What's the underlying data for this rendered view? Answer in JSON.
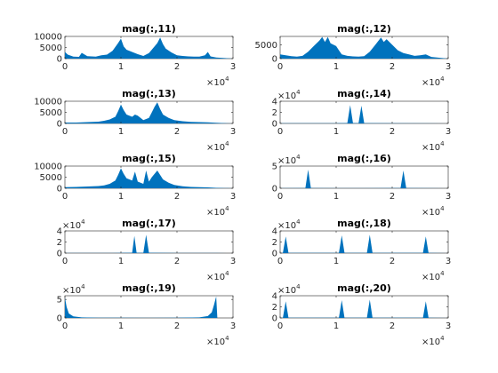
{
  "figure": {
    "background": "#ffffff",
    "series_color": "#0072bd"
  },
  "chart_data": [
    {
      "type": "area",
      "title": "mag(:,11)",
      "xlim": [
        0,
        30000
      ],
      "x_ticks": [
        "0",
        "1",
        "2",
        "3"
      ],
      "x_exponent": "×10",
      "x_exponent_power": "4",
      "ylim": [
        0,
        10000
      ],
      "y_ticks": [
        "0",
        "5000",
        "10000"
      ],
      "y_exponent": "",
      "y_exponent_power": "",
      "series": [
        {
          "points": [
            [
              0,
              3000
            ],
            [
              500,
              1800
            ],
            [
              1500,
              900
            ],
            [
              2500,
              800
            ],
            [
              3000,
              2600
            ],
            [
              4000,
              1100
            ],
            [
              5500,
              900
            ],
            [
              6500,
              1500
            ],
            [
              7500,
              1800
            ],
            [
              8500,
              3500
            ],
            [
              9500,
              7000
            ],
            [
              10000,
              9000
            ],
            [
              10500,
              5500
            ],
            [
              11000,
              4000
            ],
            [
              12000,
              3000
            ],
            [
              13000,
              2000
            ],
            [
              14000,
              1200
            ],
            [
              15000,
              2500
            ],
            [
              16000,
              5500
            ],
            [
              16500,
              7000
            ],
            [
              17000,
              9500
            ],
            [
              17500,
              6500
            ],
            [
              18000,
              4500
            ],
            [
              19000,
              2800
            ],
            [
              20000,
              1500
            ],
            [
              21000,
              1200
            ],
            [
              22000,
              1000
            ],
            [
              23000,
              900
            ],
            [
              24000,
              900
            ],
            [
              25000,
              1500
            ],
            [
              25500,
              3000
            ],
            [
              26000,
              1000
            ],
            [
              27000,
              500
            ],
            [
              30000,
              0
            ]
          ]
        }
      ]
    },
    {
      "type": "area",
      "title": "mag(:,12)",
      "xlim": [
        0,
        30000
      ],
      "x_ticks": [
        "0",
        "1",
        "2",
        "3"
      ],
      "x_exponent": "×10",
      "x_exponent_power": "4",
      "ylim": [
        0,
        8000
      ],
      "y_ticks": [
        "0",
        "5000"
      ],
      "y_exponent": "",
      "y_exponent_power": "",
      "series": [
        {
          "points": [
            [
              0,
              1500
            ],
            [
              1000,
              1200
            ],
            [
              2000,
              900
            ],
            [
              3000,
              700
            ],
            [
              4000,
              1000
            ],
            [
              5000,
              2500
            ],
            [
              6000,
              4500
            ],
            [
              7000,
              6500
            ],
            [
              7500,
              7800
            ],
            [
              8000,
              6000
            ],
            [
              8500,
              7800
            ],
            [
              9000,
              5500
            ],
            [
              10000,
              4500
            ],
            [
              10500,
              3000
            ],
            [
              11000,
              1500
            ],
            [
              12000,
              1000
            ],
            [
              13000,
              800
            ],
            [
              14000,
              700
            ],
            [
              15000,
              900
            ],
            [
              16000,
              2500
            ],
            [
              17000,
              5000
            ],
            [
              18000,
              7600
            ],
            [
              18500,
              6000
            ],
            [
              19000,
              7000
            ],
            [
              20000,
              5000
            ],
            [
              21000,
              3000
            ],
            [
              22000,
              2000
            ],
            [
              23000,
              1500
            ],
            [
              24000,
              1000
            ],
            [
              25000,
              1200
            ],
            [
              26000,
              1500
            ],
            [
              27000,
              600
            ],
            [
              30000,
              0
            ]
          ]
        }
      ]
    },
    {
      "type": "area",
      "title": "mag(:,13)",
      "xlim": [
        0,
        30000
      ],
      "x_ticks": [
        "0",
        "1",
        "2",
        "3"
      ],
      "x_exponent": "×10",
      "x_exponent_power": "4",
      "ylim": [
        0,
        10000
      ],
      "y_ticks": [
        "0",
        "5000",
        "10000"
      ],
      "y_exponent": "",
      "y_exponent_power": "",
      "series": [
        {
          "points": [
            [
              0,
              400
            ],
            [
              2000,
              400
            ],
            [
              4000,
              600
            ],
            [
              6000,
              800
            ],
            [
              7000,
              1200
            ],
            [
              8000,
              1800
            ],
            [
              9000,
              3000
            ],
            [
              9500,
              5500
            ],
            [
              10000,
              8500
            ],
            [
              10500,
              6000
            ],
            [
              11000,
              4000
            ],
            [
              12000,
              3000
            ],
            [
              12500,
              4000
            ],
            [
              13000,
              3500
            ],
            [
              14000,
              1500
            ],
            [
              15000,
              2500
            ],
            [
              15500,
              5000
            ],
            [
              16000,
              7500
            ],
            [
              16500,
              9500
            ],
            [
              17000,
              6500
            ],
            [
              17500,
              4000
            ],
            [
              18500,
              2500
            ],
            [
              19500,
              1500
            ],
            [
              21000,
              1000
            ],
            [
              22500,
              700
            ],
            [
              24000,
              600
            ],
            [
              25500,
              500
            ],
            [
              27000,
              300
            ],
            [
              30000,
              0
            ]
          ]
        }
      ]
    },
    {
      "type": "area",
      "title": "mag(:,14)",
      "xlim": [
        0,
        30000
      ],
      "x_ticks": [
        "0",
        "1",
        "2",
        "3"
      ],
      "x_exponent": "×10",
      "x_exponent_power": "4",
      "ylim": [
        0,
        40000
      ],
      "y_ticks": [
        "0",
        "2",
        "4"
      ],
      "y_exponent": "×10",
      "y_exponent_power": "4",
      "series": [
        {
          "points": [
            [
              0,
              300
            ],
            [
              5000,
              300
            ],
            [
              10000,
              500
            ],
            [
              12000,
              800
            ],
            [
              12500,
              33000
            ],
            [
              13000,
              800
            ],
            [
              14000,
              600
            ],
            [
              14500,
              32000
            ],
            [
              15000,
              600
            ],
            [
              20000,
              300
            ],
            [
              27000,
              200
            ],
            [
              30000,
              0
            ]
          ]
        }
      ]
    },
    {
      "type": "area",
      "title": "mag(:,15)",
      "xlim": [
        0,
        30000
      ],
      "x_ticks": [
        "0",
        "1",
        "2",
        "3"
      ],
      "x_exponent": "×10",
      "x_exponent_power": "4",
      "ylim": [
        0,
        10000
      ],
      "y_ticks": [
        "0",
        "5000",
        "10000"
      ],
      "y_exponent": "",
      "y_exponent_power": "",
      "series": [
        {
          "points": [
            [
              0,
              500
            ],
            [
              2000,
              600
            ],
            [
              4000,
              800
            ],
            [
              6000,
              1000
            ],
            [
              7000,
              1300
            ],
            [
              8000,
              2000
            ],
            [
              9000,
              3500
            ],
            [
              9500,
              6000
            ],
            [
              10000,
              9000
            ],
            [
              10500,
              6500
            ],
            [
              11000,
              4500
            ],
            [
              12000,
              3500
            ],
            [
              12500,
              7500
            ],
            [
              13000,
              3000
            ],
            [
              14000,
              2000
            ],
            [
              14500,
              8000
            ],
            [
              15000,
              3000
            ],
            [
              15500,
              5000
            ],
            [
              16000,
              6500
            ],
            [
              16500,
              8000
            ],
            [
              17000,
              6000
            ],
            [
              17500,
              4000
            ],
            [
              18500,
              2500
            ],
            [
              19500,
              1500
            ],
            [
              21000,
              900
            ],
            [
              22500,
              600
            ],
            [
              24000,
              500
            ],
            [
              25500,
              400
            ],
            [
              27000,
              200
            ],
            [
              30000,
              0
            ]
          ]
        }
      ]
    },
    {
      "type": "area",
      "title": "mag(:,16)",
      "xlim": [
        0,
        30000
      ],
      "x_ticks": [
        "0",
        "1",
        "2",
        "3"
      ],
      "x_exponent": "×10",
      "x_exponent_power": "4",
      "ylim": [
        0,
        50000
      ],
      "y_ticks": [
        "0",
        "5"
      ],
      "y_exponent": "×10",
      "y_exponent_power": "4",
      "series": [
        {
          "points": [
            [
              0,
              200
            ],
            [
              4500,
              300
            ],
            [
              5000,
              42000
            ],
            [
              5500,
              300
            ],
            [
              10000,
              200
            ],
            [
              15000,
              200
            ],
            [
              20000,
              300
            ],
            [
              21500,
              300
            ],
            [
              22000,
              40000
            ],
            [
              22500,
              300
            ],
            [
              27000,
              200
            ],
            [
              30000,
              0
            ]
          ]
        }
      ]
    },
    {
      "type": "area",
      "title": "mag(:,17)",
      "xlim": [
        0,
        30000
      ],
      "x_ticks": [
        "0",
        "1",
        "2",
        "3"
      ],
      "x_exponent": "×10",
      "x_exponent_power": "4",
      "ylim": [
        0,
        40000
      ],
      "y_ticks": [
        "0",
        "2",
        "4"
      ],
      "y_exponent": "×10",
      "y_exponent_power": "4",
      "series": [
        {
          "points": [
            [
              0,
              200
            ],
            [
              5000,
              200
            ],
            [
              10000,
              400
            ],
            [
              12000,
              700
            ],
            [
              12400,
              31000
            ],
            [
              12800,
              700
            ],
            [
              14000,
              700
            ],
            [
              14500,
              33000
            ],
            [
              15000,
              700
            ],
            [
              20000,
              200
            ],
            [
              27000,
              200
            ],
            [
              30000,
              0
            ]
          ]
        }
      ]
    },
    {
      "type": "area",
      "title": "mag(:,18)",
      "xlim": [
        0,
        30000
      ],
      "x_ticks": [
        "0",
        "1",
        "2",
        "3"
      ],
      "x_exponent": "×10",
      "x_exponent_power": "4",
      "ylim": [
        0,
        40000
      ],
      "y_ticks": [
        "0",
        "2",
        "4"
      ],
      "y_exponent": "×10",
      "y_exponent_power": "4",
      "series": [
        {
          "points": [
            [
              0,
              300
            ],
            [
              500,
              500
            ],
            [
              1000,
              30000
            ],
            [
              1500,
              500
            ],
            [
              5000,
              300
            ],
            [
              10500,
              400
            ],
            [
              11000,
              32000
            ],
            [
              11500,
              400
            ],
            [
              15500,
              400
            ],
            [
              16000,
              33000
            ],
            [
              16500,
              400
            ],
            [
              22000,
              300
            ],
            [
              25500,
              400
            ],
            [
              26000,
              30000
            ],
            [
              26500,
              400
            ],
            [
              30000,
              0
            ]
          ]
        }
      ]
    },
    {
      "type": "area",
      "title": "mag(:,19)",
      "xlim": [
        0,
        30000
      ],
      "x_ticks": [
        "0",
        "1",
        "2",
        "3"
      ],
      "x_exponent": "×10",
      "x_exponent_power": "4",
      "ylim": [
        0,
        60000
      ],
      "y_ticks": [
        "0",
        "5"
      ],
      "y_exponent": "×10",
      "y_exponent_power": "4",
      "series": [
        {
          "points": [
            [
              0,
              55000
            ],
            [
              300,
              30000
            ],
            [
              700,
              12000
            ],
            [
              1500,
              4000
            ],
            [
              3000,
              1500
            ],
            [
              6000,
              600
            ],
            [
              10000,
              400
            ],
            [
              15000,
              300
            ],
            [
              20000,
              500
            ],
            [
              24000,
              1500
            ],
            [
              25500,
              5000
            ],
            [
              26200,
              15000
            ],
            [
              26600,
              35000
            ],
            [
              27000,
              58000
            ],
            [
              27200,
              0
            ],
            [
              30000,
              0
            ]
          ]
        }
      ]
    },
    {
      "type": "area",
      "title": "mag(:,20)",
      "xlim": [
        0,
        30000
      ],
      "x_ticks": [
        "0",
        "1",
        "2",
        "3"
      ],
      "x_exponent": "×10",
      "x_exponent_power": "4",
      "ylim": [
        0,
        40000
      ],
      "y_ticks": [
        "0",
        "2",
        "4"
      ],
      "y_exponent": "×10",
      "y_exponent_power": "4",
      "series": [
        {
          "points": [
            [
              0,
              300
            ],
            [
              500,
              500
            ],
            [
              1000,
              30000
            ],
            [
              1500,
              500
            ],
            [
              5000,
              300
            ],
            [
              10500,
              400
            ],
            [
              11000,
              32000
            ],
            [
              11500,
              400
            ],
            [
              15500,
              400
            ],
            [
              16000,
              33000
            ],
            [
              16500,
              400
            ],
            [
              22000,
              300
            ],
            [
              25500,
              400
            ],
            [
              26000,
              30000
            ],
            [
              26500,
              400
            ],
            [
              30000,
              0
            ]
          ]
        }
      ]
    }
  ]
}
